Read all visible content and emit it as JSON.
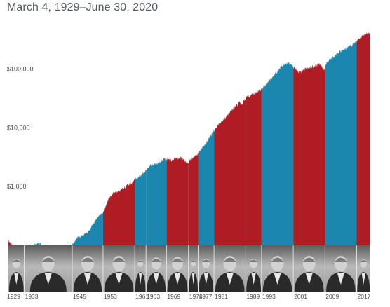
{
  "chart_data": {
    "type": "area",
    "title": "March 4, 1929–June 30, 2020",
    "y_scale": "log",
    "y_ticks": [
      {
        "value": 1000,
        "label": "$1,000"
      },
      {
        "value": 10000,
        "label": "$10,000"
      },
      {
        "value": 100000,
        "label": "$100,000"
      }
    ],
    "ylim": [
      100,
      500000
    ],
    "xlim": [
      1929.17,
      2020.5
    ],
    "term_start_labels": [
      "1929",
      "1933",
      "1945",
      "1953",
      "1961",
      "1963",
      "1969",
      "1974",
      "1977",
      "1981",
      "1989",
      "1993",
      "2001",
      "2009",
      "2017"
    ],
    "colors": {
      "Democratic": "#1b86ae",
      "Republican": "#b01c24"
    },
    "terms": [
      {
        "start": 1929.17,
        "end": 1933.17,
        "party": "Republican"
      },
      {
        "start": 1933.17,
        "end": 1945.28,
        "party": "Democratic"
      },
      {
        "start": 1945.28,
        "end": 1953.05,
        "party": "Democratic"
      },
      {
        "start": 1953.05,
        "end": 1961.05,
        "party": "Republican"
      },
      {
        "start": 1961.05,
        "end": 1963.89,
        "party": "Democratic"
      },
      {
        "start": 1963.89,
        "end": 1969.05,
        "party": "Democratic"
      },
      {
        "start": 1969.05,
        "end": 1974.61,
        "party": "Republican"
      },
      {
        "start": 1974.61,
        "end": 1977.05,
        "party": "Republican"
      },
      {
        "start": 1977.05,
        "end": 1981.05,
        "party": "Democratic"
      },
      {
        "start": 1981.05,
        "end": 1989.05,
        "party": "Republican"
      },
      {
        "start": 1989.05,
        "end": 1993.05,
        "party": "Republican"
      },
      {
        "start": 1993.05,
        "end": 2001.05,
        "party": "Democratic"
      },
      {
        "start": 2001.05,
        "end": 2009.05,
        "party": "Republican"
      },
      {
        "start": 2009.05,
        "end": 2017.05,
        "party": "Democratic"
      },
      {
        "start": 2017.05,
        "end": 2020.5,
        "party": "Republican"
      }
    ],
    "series": [
      {
        "x": [
          1929.17,
          1929.7,
          1930.5,
          1931.5,
          1932.4,
          1933.17,
          1934,
          1935,
          1936.5,
          1937.2,
          1938,
          1939,
          1940,
          1941,
          1942.3,
          1943,
          1944,
          1945.28,
          1946.3,
          1947,
          1948,
          1949,
          1950,
          1951,
          1952,
          1953.05,
          1954,
          1955,
          1956,
          1957,
          1958,
          1959,
          1960,
          1961.05,
          1962.4,
          1963,
          1963.89,
          1965,
          1966.8,
          1968,
          1969.05,
          1970.4,
          1971,
          1972.9,
          1973.5,
          1974.61,
          1975,
          1976,
          1977.05,
          1978,
          1979,
          1980,
          1981.05,
          1982.5,
          1984,
          1985,
          1986,
          1987.6,
          1987.9,
          1989.05,
          1990,
          1991,
          1993.05,
          1995,
          1997,
          1998.6,
          2000.2,
          2001.05,
          2002.7,
          2004,
          2007.8,
          2009.05,
          2009.2,
          2010,
          2012,
          2014,
          2016,
          2017.05,
          2018,
          2019,
          2020.15,
          2020.25,
          2020.5
        ],
        "y": [
          120,
          110,
          85,
          60,
          75,
          85,
          90,
          95,
          110,
          105,
          95,
          95,
          92,
          90,
          88,
          92,
          95,
          100,
          130,
          140,
          150,
          160,
          200,
          260,
          320,
          360,
          520,
          700,
          800,
          820,
          900,
          1050,
          1100,
          1300,
          1500,
          1700,
          1900,
          2300,
          2500,
          2800,
          3000,
          2800,
          3000,
          3100,
          2800,
          2500,
          2900,
          3200,
          3700,
          4500,
          5500,
          7000,
          9000,
          12000,
          15000,
          18000,
          22000,
          27000,
          24000,
          32000,
          35000,
          38000,
          45000,
          65000,
          90000,
          120000,
          125000,
          110000,
          85000,
          100000,
          120000,
          95000,
          120000,
          140000,
          180000,
          220000,
          260000,
          300000,
          340000,
          380000,
          430000,
          390000,
          440000
        ]
      }
    ]
  }
}
